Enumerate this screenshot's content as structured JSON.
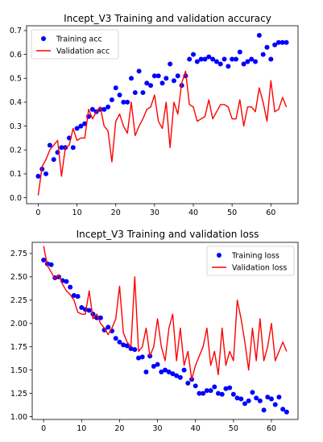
{
  "colors": {
    "training": "#0000ff",
    "validation": "#ff0000"
  },
  "chart_data": [
    {
      "type": "scatter",
      "title": "Incept_V3 Training and validation accuracy",
      "xlim": [
        -3,
        67
      ],
      "ylim": [
        -0.025,
        0.72
      ],
      "xticks": [
        0,
        10,
        20,
        30,
        40,
        50,
        60
      ],
      "yticks": [
        0.0,
        0.1,
        0.2,
        0.3,
        0.4,
        0.5,
        0.6,
        0.7
      ],
      "ytick_format": 1,
      "legend_position": "top-left",
      "series": [
        {
          "name": "Training acc",
          "kind": "markers",
          "color_key": "training",
          "values": [
            0.09,
            0.12,
            0.1,
            0.22,
            0.16,
            0.19,
            0.21,
            0.21,
            0.25,
            0.21,
            0.29,
            0.3,
            0.31,
            0.34,
            0.37,
            0.36,
            0.37,
            0.37,
            0.38,
            0.41,
            0.46,
            0.43,
            0.4,
            0.4,
            0.5,
            0.44,
            0.53,
            0.44,
            0.48,
            0.47,
            0.51,
            0.51,
            0.48,
            0.5,
            0.56,
            0.49,
            0.51,
            0.47,
            0.51,
            0.58,
            0.6,
            0.57,
            0.58,
            0.58,
            0.59,
            0.58,
            0.57,
            0.56,
            0.58,
            0.55,
            0.58,
            0.58,
            0.61,
            0.56,
            0.57,
            0.58,
            0.57,
            0.68,
            0.6,
            0.63,
            0.58,
            0.64,
            0.65,
            0.65,
            0.65
          ]
        },
        {
          "name": "Validation acc",
          "kind": "line",
          "color_key": "validation",
          "values": [
            0.01,
            0.13,
            0.16,
            0.2,
            0.22,
            0.24,
            0.09,
            0.21,
            0.22,
            0.29,
            0.24,
            0.25,
            0.25,
            0.37,
            0.33,
            0.36,
            0.38,
            0.3,
            0.28,
            0.15,
            0.32,
            0.35,
            0.3,
            0.27,
            0.4,
            0.26,
            0.3,
            0.33,
            0.37,
            0.38,
            0.43,
            0.32,
            0.29,
            0.4,
            0.21,
            0.4,
            0.35,
            0.48,
            0.53,
            0.39,
            0.38,
            0.32,
            0.33,
            0.34,
            0.41,
            0.33,
            0.36,
            0.39,
            0.39,
            0.38,
            0.33,
            0.33,
            0.41,
            0.3,
            0.38,
            0.38,
            0.36,
            0.46,
            0.4,
            0.32,
            0.49,
            0.36,
            0.37,
            0.42,
            0.38
          ]
        }
      ]
    },
    {
      "type": "scatter",
      "title": "Incept_V3 Training and validation loss",
      "xlim": [
        -3,
        67
      ],
      "ylim": [
        0.97,
        2.87
      ],
      "xticks": [
        0,
        10,
        20,
        30,
        40,
        50,
        60
      ],
      "yticks": [
        1.0,
        1.25,
        1.5,
        1.75,
        2.0,
        2.25,
        2.5,
        2.75
      ],
      "ytick_format": 2,
      "legend_position": "top-right",
      "series": [
        {
          "name": "Training loss",
          "kind": "markers",
          "color_key": "training",
          "values": [
            2.68,
            2.64,
            2.63,
            2.49,
            2.5,
            2.46,
            2.45,
            2.39,
            2.3,
            2.29,
            2.17,
            2.15,
            2.14,
            2.1,
            2.06,
            2.06,
            1.93,
            1.96,
            1.92,
            1.84,
            1.8,
            1.77,
            1.76,
            1.73,
            1.72,
            1.63,
            1.64,
            1.48,
            1.65,
            1.54,
            1.56,
            1.48,
            1.5,
            1.48,
            1.46,
            1.44,
            1.42,
            1.5,
            1.36,
            1.4,
            1.33,
            1.25,
            1.25,
            1.28,
            1.28,
            1.32,
            1.25,
            1.24,
            1.3,
            1.31,
            1.24,
            1.2,
            1.19,
            1.14,
            1.17,
            1.26,
            1.2,
            1.17,
            1.07,
            1.21,
            1.19,
            1.13,
            1.21,
            1.08,
            1.05
          ]
        },
        {
          "name": "Validation loss",
          "kind": "line",
          "color_key": "validation",
          "values": [
            2.83,
            2.62,
            2.55,
            2.48,
            2.52,
            2.42,
            2.35,
            2.31,
            2.25,
            2.12,
            2.1,
            2.1,
            2.35,
            2.05,
            2.1,
            2.0,
            1.95,
            1.88,
            1.95,
            2.05,
            2.4,
            1.9,
            1.8,
            1.75,
            2.5,
            1.7,
            1.75,
            1.95,
            1.65,
            1.75,
            2.05,
            1.75,
            1.6,
            1.95,
            2.1,
            1.6,
            1.95,
            1.55,
            1.7,
            1.4,
            1.55,
            1.65,
            1.75,
            1.95,
            1.55,
            1.7,
            1.45,
            1.95,
            1.55,
            1.7,
            1.6,
            2.25,
            2.05,
            1.8,
            1.5,
            1.95,
            1.6,
            2.05,
            1.6,
            1.75,
            2.0,
            1.6,
            1.7,
            1.8,
            1.7
          ]
        }
      ]
    }
  ]
}
